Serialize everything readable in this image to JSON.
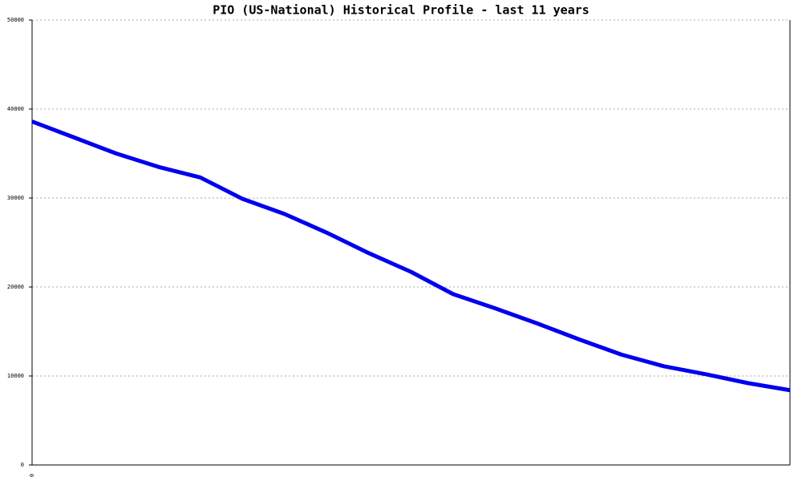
{
  "chart_data": {
    "type": "line",
    "title": "PIO (US-National) Historical Profile - last 11 years",
    "x": [
      0,
      1,
      2,
      3,
      4,
      5,
      6,
      7,
      8,
      9,
      10,
      11,
      12,
      13,
      14,
      15,
      16,
      17,
      18
    ],
    "series": [
      {
        "color": "#0000ee",
        "values": [
          38600,
          36800,
          35000,
          33500,
          32300,
          29900,
          28200,
          26100,
          23800,
          21700,
          19200,
          17600,
          15900,
          14100,
          12400,
          11100,
          10200,
          9200,
          8400
        ]
      }
    ],
    "xlim": [
      0,
      18
    ],
    "xticks": [
      0
    ],
    "ylim": [
      0,
      50000
    ],
    "yticks": [
      0,
      10000,
      20000,
      30000,
      40000,
      50000
    ],
    "grid": true
  }
}
